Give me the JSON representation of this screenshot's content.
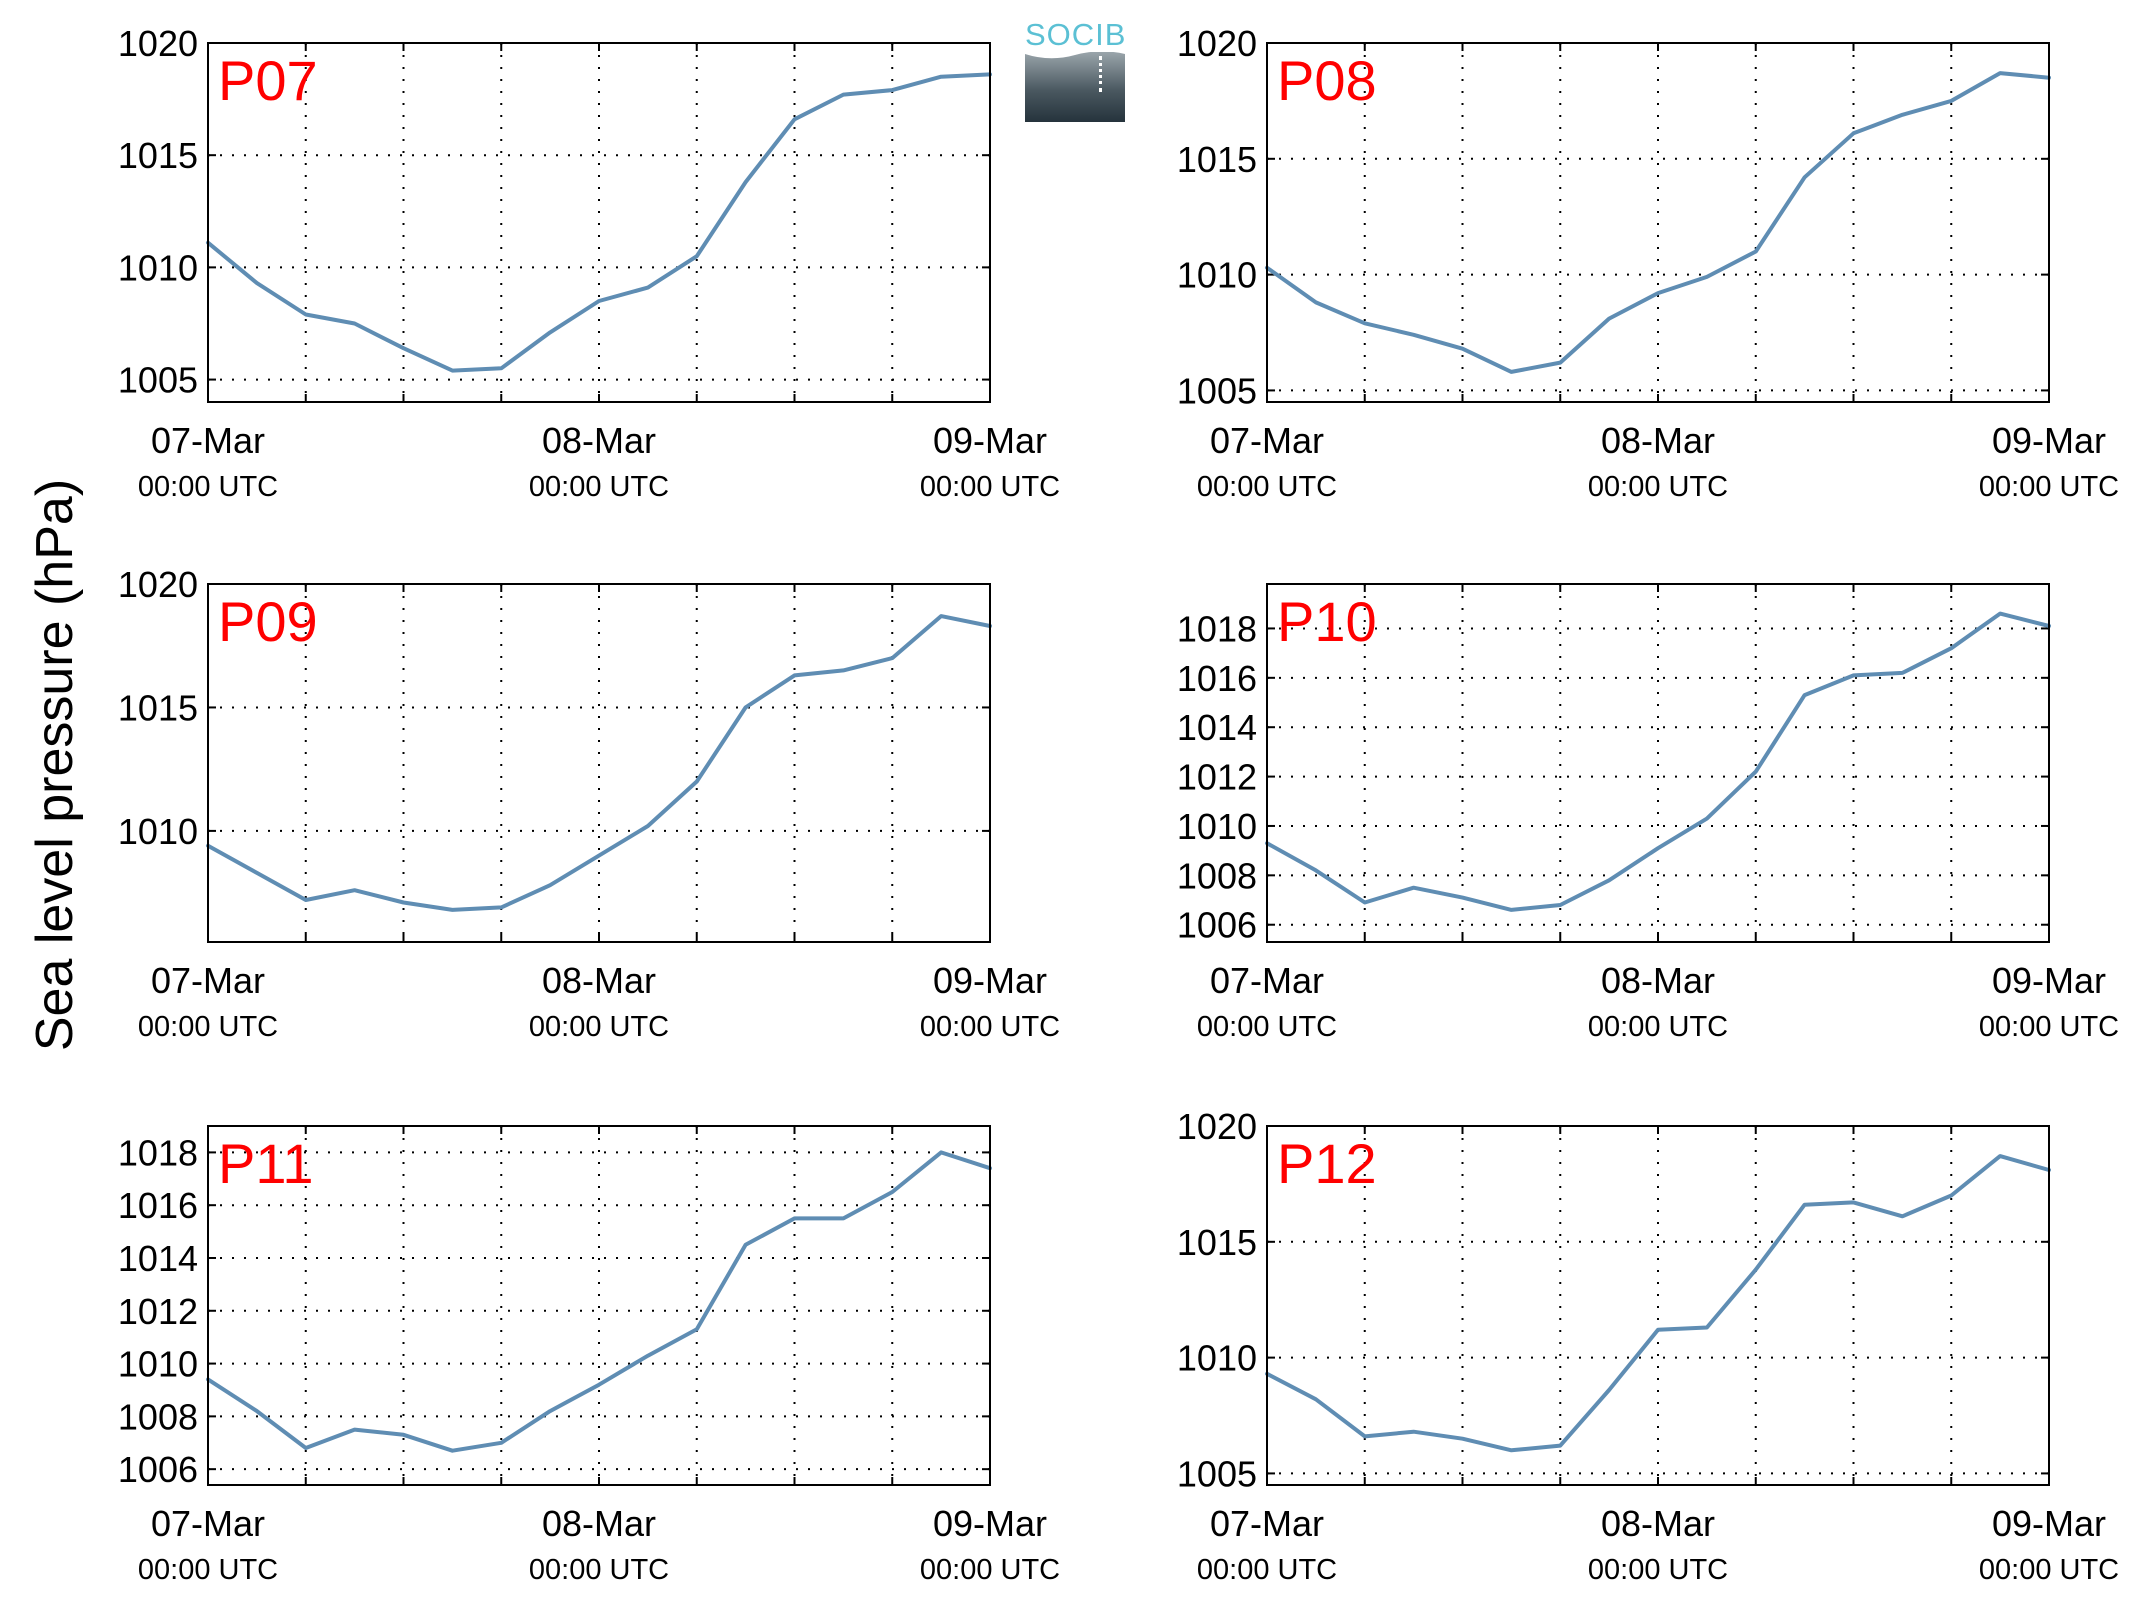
{
  "figure": {
    "ylabel": "Sea level pressure (hPa)",
    "logo_text": "SOCIB",
    "line_color": "#5f8db3",
    "label_color": "#ff0000"
  },
  "chart_data": [
    {
      "type": "line",
      "title": "P07",
      "ylim": [
        1004,
        1020
      ],
      "yticks": [
        1005,
        1010,
        1015,
        1020
      ],
      "x_ticks": [
        {
          "date": "07-Mar",
          "time": "00:00 UTC"
        },
        {
          "date": "08-Mar",
          "time": "00:00 UTC"
        },
        {
          "date": "09-Mar",
          "time": "00:00 UTC"
        }
      ],
      "x": [
        0,
        3,
        6,
        9,
        12,
        15,
        18,
        21,
        24,
        27,
        30,
        33,
        36,
        39,
        42,
        45,
        48
      ],
      "values": [
        1011.1,
        1009.3,
        1007.9,
        1007.5,
        1006.4,
        1005.4,
        1005.5,
        1007.1,
        1008.5,
        1009.1,
        1010.5,
        1013.8,
        1016.6,
        1017.7,
        1017.9,
        1018.5,
        1018.6
      ]
    },
    {
      "type": "line",
      "title": "P08",
      "ylim": [
        1004.5,
        1020
      ],
      "yticks": [
        1005,
        1010,
        1015,
        1020
      ],
      "x_ticks": [
        {
          "date": "07-Mar",
          "time": "00:00 UTC"
        },
        {
          "date": "08-Mar",
          "time": "00:00 UTC"
        },
        {
          "date": "09-Mar",
          "time": "00:00 UTC"
        }
      ],
      "x": [
        0,
        3,
        6,
        9,
        12,
        15,
        18,
        21,
        24,
        27,
        30,
        33,
        36,
        39,
        42,
        45,
        48
      ],
      "values": [
        1010.3,
        1008.8,
        1007.9,
        1007.4,
        1006.8,
        1005.8,
        1006.2,
        1008.1,
        1009.2,
        1009.9,
        1011.0,
        1014.2,
        1016.1,
        1016.9,
        1017.5,
        1018.7,
        1018.5
      ]
    },
    {
      "type": "line",
      "title": "P09",
      "ylim": [
        1005.5,
        1020
      ],
      "yticks": [
        1010,
        1015,
        1020
      ],
      "x_ticks": [
        {
          "date": "07-Mar",
          "time": "00:00 UTC"
        },
        {
          "date": "08-Mar",
          "time": "00:00 UTC"
        },
        {
          "date": "09-Mar",
          "time": "00:00 UTC"
        }
      ],
      "x": [
        0,
        3,
        6,
        9,
        12,
        15,
        18,
        21,
        24,
        27,
        30,
        33,
        36,
        39,
        42,
        45,
        48
      ],
      "values": [
        1009.4,
        1008.3,
        1007.2,
        1007.6,
        1007.1,
        1006.8,
        1006.9,
        1007.8,
        1009.0,
        1010.2,
        1012.0,
        1015.0,
        1016.3,
        1016.5,
        1017.0,
        1018.7,
        1018.3
      ]
    },
    {
      "type": "line",
      "title": "P10",
      "ylim": [
        1005.3,
        1019.8
      ],
      "yticks": [
        1006,
        1008,
        1010,
        1012,
        1014,
        1016,
        1018
      ],
      "x_ticks": [
        {
          "date": "07-Mar",
          "time": "00:00 UTC"
        },
        {
          "date": "08-Mar",
          "time": "00:00 UTC"
        },
        {
          "date": "09-Mar",
          "time": "00:00 UTC"
        }
      ],
      "x": [
        0,
        3,
        6,
        9,
        12,
        15,
        18,
        21,
        24,
        27,
        30,
        33,
        36,
        39,
        42,
        45,
        48
      ],
      "values": [
        1009.3,
        1008.2,
        1006.9,
        1007.5,
        1007.1,
        1006.6,
        1006.8,
        1007.8,
        1009.1,
        1010.3,
        1012.2,
        1015.3,
        1016.1,
        1016.2,
        1017.2,
        1018.6,
        1018.1
      ]
    },
    {
      "type": "line",
      "title": "P11",
      "ylim": [
        1005.4,
        1019.0
      ],
      "yticks": [
        1006,
        1008,
        1010,
        1012,
        1014,
        1016,
        1018
      ],
      "x_ticks": [
        {
          "date": "07-Mar",
          "time": "00:00 UTC"
        },
        {
          "date": "08-Mar",
          "time": "00:00 UTC"
        },
        {
          "date": "09-Mar",
          "time": "00:00 UTC"
        }
      ],
      "x": [
        0,
        3,
        6,
        9,
        12,
        15,
        18,
        21,
        24,
        27,
        30,
        33,
        36,
        39,
        42,
        45,
        48
      ],
      "values": [
        1009.4,
        1008.2,
        1006.8,
        1007.5,
        1007.3,
        1006.7,
        1007.0,
        1008.2,
        1009.2,
        1010.3,
        1011.3,
        1014.5,
        1015.5,
        1015.5,
        1016.5,
        1018.0,
        1017.4
      ]
    },
    {
      "type": "line",
      "title": "P12",
      "ylim": [
        1004.5,
        1020
      ],
      "yticks": [
        1005,
        1010,
        1015,
        1020
      ],
      "x_ticks": [
        {
          "date": "07-Mar",
          "time": "00:00 UTC"
        },
        {
          "date": "08-Mar",
          "time": "00:00 UTC"
        },
        {
          "date": "09-Mar",
          "time": "00:00 UTC"
        }
      ],
      "x": [
        0,
        3,
        6,
        9,
        12,
        15,
        18,
        21,
        24,
        27,
        30,
        33,
        36,
        39,
        42,
        45,
        48
      ],
      "values": [
        1009.3,
        1008.2,
        1006.6,
        1006.8,
        1006.5,
        1006.0,
        1006.2,
        1008.6,
        1011.2,
        1011.3,
        1013.8,
        1016.6,
        1016.7,
        1016.1,
        1017.0,
        1018.7,
        1018.1
      ]
    }
  ]
}
